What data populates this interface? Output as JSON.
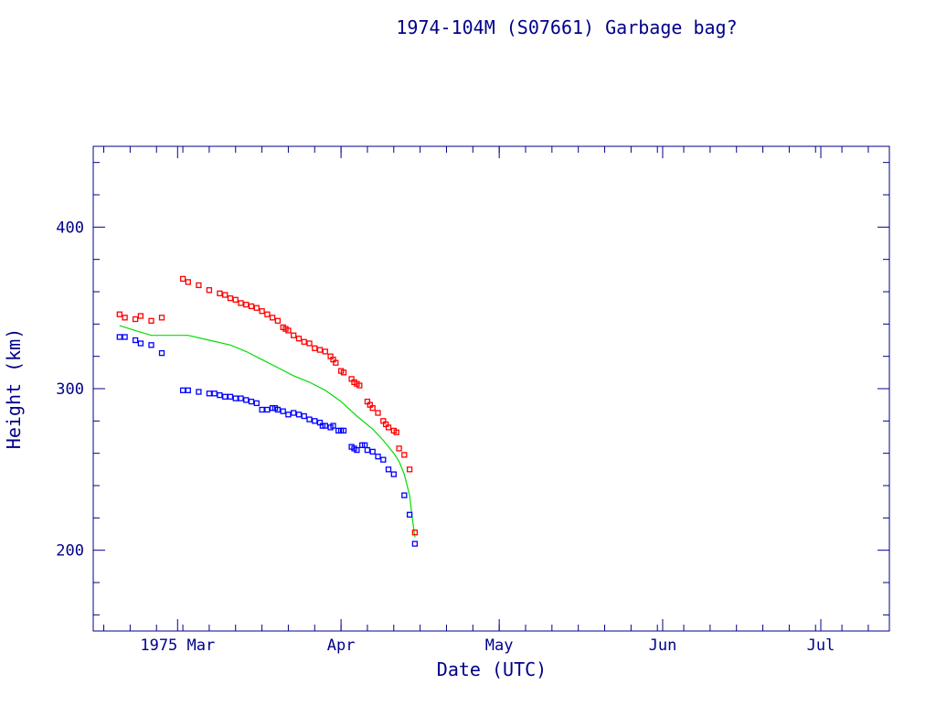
{
  "chart_data": {
    "type": "scatter",
    "title": "1974-104M (S07661) Garbage bag?",
    "xlabel": "Date (UTC)",
    "ylabel": "Height (km)",
    "xlim": [
      "1975-02-13",
      "1975-07-14"
    ],
    "ylim": [
      150,
      450
    ],
    "x_ticks": [
      {
        "date": "1975-03-01",
        "label": "1975 Mar"
      },
      {
        "date": "1975-04-01",
        "label": "Apr"
      },
      {
        "date": "1975-05-01",
        "label": "May"
      },
      {
        "date": "1975-06-01",
        "label": "Jun"
      },
      {
        "date": "1975-07-01",
        "label": "Jul"
      }
    ],
    "y_ticks": [
      200,
      300,
      400
    ],
    "grid": false,
    "colors": {
      "frame": "#00008b",
      "apogee": "#ff0000",
      "perigee": "#0000ff",
      "mean": "#00dd00"
    },
    "series": [
      {
        "key": "apogee",
        "marker": "square",
        "points": [
          [
            "1975-02-18",
            346
          ],
          [
            "1975-02-19",
            344
          ],
          [
            "1975-02-21",
            343
          ],
          [
            "1975-02-22",
            345
          ],
          [
            "1975-02-24",
            342
          ],
          [
            "1975-02-26",
            344
          ],
          [
            "1975-03-02",
            368
          ],
          [
            "1975-03-03",
            366
          ],
          [
            "1975-03-05",
            364
          ],
          [
            "1975-03-07",
            361
          ],
          [
            "1975-03-09",
            359
          ],
          [
            "1975-03-10",
            358
          ],
          [
            "1975-03-11",
            356
          ],
          [
            "1975-03-12",
            355
          ],
          [
            "1975-03-13",
            353
          ],
          [
            "1975-03-14",
            352
          ],
          [
            "1975-03-15",
            351
          ],
          [
            "1975-03-16",
            350
          ],
          [
            "1975-03-17",
            348
          ],
          [
            "1975-03-18",
            346
          ],
          [
            "1975-03-19",
            344
          ],
          [
            "1975-03-20",
            342
          ],
          [
            "1975-03-21",
            338
          ],
          [
            "1975-03-21.5",
            337
          ],
          [
            "1975-03-22",
            336
          ],
          [
            "1975-03-23",
            333
          ],
          [
            "1975-03-24",
            331
          ],
          [
            "1975-03-25",
            329
          ],
          [
            "1975-03-26",
            328
          ],
          [
            "1975-03-27",
            325
          ],
          [
            "1975-03-28",
            324
          ],
          [
            "1975-03-29",
            323
          ],
          [
            "1975-03-30",
            320
          ],
          [
            "1975-03-30.5",
            318
          ],
          [
            "1975-03-31",
            316
          ],
          [
            "1975-04-01",
            311
          ],
          [
            "1975-04-01.5",
            310
          ],
          [
            "1975-04-03",
            306
          ],
          [
            "1975-04-03.5",
            304
          ],
          [
            "1975-04-04",
            303
          ],
          [
            "1975-04-04.5",
            302
          ],
          [
            "1975-04-06",
            292
          ],
          [
            "1975-04-06.5",
            290
          ],
          [
            "1975-04-07",
            288
          ],
          [
            "1975-04-08",
            285
          ],
          [
            "1975-04-09",
            280
          ],
          [
            "1975-04-09.5",
            278
          ],
          [
            "1975-04-10",
            276
          ],
          [
            "1975-04-11",
            274
          ],
          [
            "1975-04-11.5",
            273
          ],
          [
            "1975-04-12",
            263
          ],
          [
            "1975-04-13",
            259
          ],
          [
            "1975-04-14",
            250
          ],
          [
            "1975-04-15",
            211
          ]
        ]
      },
      {
        "key": "perigee",
        "marker": "square",
        "points": [
          [
            "1975-02-18",
            332
          ],
          [
            "1975-02-19",
            332
          ],
          [
            "1975-02-21",
            330
          ],
          [
            "1975-02-22",
            328
          ],
          [
            "1975-02-24",
            327
          ],
          [
            "1975-02-26",
            322
          ],
          [
            "1975-03-02",
            299
          ],
          [
            "1975-03-03",
            299
          ],
          [
            "1975-03-05",
            298
          ],
          [
            "1975-03-07",
            297
          ],
          [
            "1975-03-08",
            297
          ],
          [
            "1975-03-09",
            296
          ],
          [
            "1975-03-10",
            295
          ],
          [
            "1975-03-11",
            295
          ],
          [
            "1975-03-12",
            294
          ],
          [
            "1975-03-13",
            294
          ],
          [
            "1975-03-14",
            293
          ],
          [
            "1975-03-15",
            292
          ],
          [
            "1975-03-16",
            291
          ],
          [
            "1975-03-17",
            287
          ],
          [
            "1975-03-18",
            287
          ],
          [
            "1975-03-19",
            288
          ],
          [
            "1975-03-19.5",
            288
          ],
          [
            "1975-03-20",
            287
          ],
          [
            "1975-03-21",
            286
          ],
          [
            "1975-03-22",
            284
          ],
          [
            "1975-03-23",
            285
          ],
          [
            "1975-03-24",
            284
          ],
          [
            "1975-03-25",
            283
          ],
          [
            "1975-03-26",
            281
          ],
          [
            "1975-03-27",
            280
          ],
          [
            "1975-03-28",
            279
          ],
          [
            "1975-03-28.5",
            277
          ],
          [
            "1975-03-29",
            277
          ],
          [
            "1975-03-30",
            276
          ],
          [
            "1975-03-30.5",
            277
          ],
          [
            "1975-04-01",
            274
          ],
          [
            "1975-04-01.5",
            274
          ],
          [
            "1975-03-31.5",
            274
          ],
          [
            "1975-04-03",
            264
          ],
          [
            "1975-04-03.5",
            263
          ],
          [
            "1975-04-04",
            262
          ],
          [
            "1975-04-05",
            265
          ],
          [
            "1975-04-05.5",
            265
          ],
          [
            "1975-04-06",
            262
          ],
          [
            "1975-04-07",
            261
          ],
          [
            "1975-04-08",
            258
          ],
          [
            "1975-04-09",
            256
          ],
          [
            "1975-04-10",
            250
          ],
          [
            "1975-04-11",
            247
          ],
          [
            "1975-04-13",
            234
          ],
          [
            "1975-04-14",
            222
          ],
          [
            "1975-04-15",
            204
          ]
        ]
      },
      {
        "key": "mean",
        "marker": "line",
        "points": [
          [
            "1975-02-18",
            339
          ],
          [
            "1975-02-21",
            336
          ],
          [
            "1975-02-24",
            333
          ],
          [
            "1975-02-26",
            333
          ],
          [
            "1975-03-02",
            333
          ],
          [
            "1975-03-03",
            333
          ],
          [
            "1975-03-07",
            330
          ],
          [
            "1975-03-11",
            327
          ],
          [
            "1975-03-14",
            323
          ],
          [
            "1975-03-17",
            318
          ],
          [
            "1975-03-20",
            313
          ],
          [
            "1975-03-23",
            308
          ],
          [
            "1975-03-26",
            304
          ],
          [
            "1975-03-29",
            299
          ],
          [
            "1975-04-01",
            292
          ],
          [
            "1975-04-04",
            283
          ],
          [
            "1975-04-07",
            275
          ],
          [
            "1975-04-09",
            268
          ],
          [
            "1975-04-11",
            260
          ],
          [
            "1975-04-12",
            255
          ],
          [
            "1975-04-13",
            247
          ],
          [
            "1975-04-14",
            234
          ],
          [
            "1975-04-14.5",
            220
          ],
          [
            "1975-04-15",
            208
          ]
        ]
      }
    ]
  }
}
